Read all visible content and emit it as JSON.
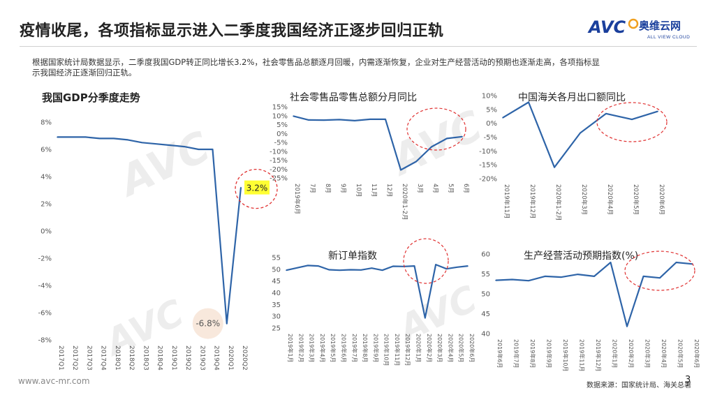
{
  "header": {
    "title": "疫情收尾，各项指标显示进入二季度我国经济正逐步回归正轨",
    "logo_text": "AVC",
    "logo_cn": "奥维云网",
    "logo_en": "ALL VIEW CLOUD"
  },
  "description": "根据国家统计局数据显示，二季度我国GDP转正同比增长3.2%，社会零售品总额逐月回暖，内需逐渐恢复，企业对生产经营活动的预期也逐渐走高，各项指标显示我国经济正逐渐回归正轨。",
  "watermark": {
    "brand": "AVC",
    "cn": "奥维云网",
    "en": "ALL VIEW CLOUD"
  },
  "footer": {
    "website": "www.avc-mr.com",
    "source": "数据来源：国家统计局、海关总署",
    "page": "3"
  },
  "colors": {
    "line": "#2e64a8",
    "highlight": "#ffff33",
    "circle": "#e03030",
    "negative_bg": "#f7e6d8"
  },
  "chart_data": [
    {
      "id": "gdp",
      "type": "line",
      "title": "我国GDP分季度走势",
      "categories": [
        "2017Q1",
        "2017Q2",
        "2017Q3",
        "2017Q4",
        "2018Q1",
        "2018Q2",
        "2018Q3",
        "2018Q4",
        "2019Q1",
        "2019Q2",
        "2019Q3",
        "2019Q4",
        "2020Q1",
        "2020Q2"
      ],
      "values": [
        6.9,
        6.9,
        6.9,
        6.8,
        6.8,
        6.7,
        6.5,
        6.4,
        6.3,
        6.2,
        6.0,
        6.0,
        -6.8,
        3.2
      ],
      "ylim": [
        -8,
        8
      ],
      "yticks": [
        "8%",
        "6%",
        "4%",
        "2%",
        "0%",
        "-2%",
        "-4%",
        "-6%",
        "-8%"
      ],
      "labels": {
        "positive": "3.2%",
        "negative": "-6.8%"
      }
    },
    {
      "id": "retail",
      "type": "line",
      "title": "社会零售品零售总额分月同比",
      "categories": [
        "2019年6月",
        "7月",
        "8月",
        "9月",
        "10月",
        "11月",
        "12月",
        "2020年1-2月",
        "3月",
        "4月",
        "5月",
        "6月"
      ],
      "values": [
        9.8,
        7.6,
        7.5,
        7.8,
        7.2,
        8.0,
        8.0,
        -20.5,
        -15.8,
        -7.5,
        -2.8,
        -1.8
      ],
      "ylim": [
        -25,
        15
      ],
      "yticks": [
        "15%",
        "10%",
        "5%",
        "0%",
        "-5%",
        "-10%",
        "-15%",
        "-20%",
        "-25%"
      ]
    },
    {
      "id": "export",
      "type": "line",
      "title": "中国海关各月出口额同比",
      "categories": [
        "2019年11月",
        "2019年12月",
        "2020年1-2月",
        "2020年3月",
        "2020年4月",
        "2020年5月",
        "2020年6月"
      ],
      "values": [
        2.0,
        7.6,
        -15.9,
        -3.5,
        3.5,
        1.4,
        4.3
      ],
      "ylim": [
        -20,
        10
      ],
      "yticks": [
        "10%",
        "5%",
        "0%",
        "-5%",
        "-10%",
        "-15%",
        "-20%"
      ],
      "xticks": [
        "2019年11月",
        "2019年12月",
        "2020年1-2月",
        "2020年3月",
        "2020年4月",
        "2020年5月",
        "2020年6月"
      ]
    },
    {
      "id": "neworders",
      "type": "line",
      "title": "新订单指数",
      "categories": [
        "2019年1月",
        "2019年2月",
        "2019年3月",
        "2019年4月",
        "2019年5月",
        "2019年6月",
        "2019年7月",
        "2019年8月",
        "2019年9月",
        "2019年10月",
        "2019年11月",
        "2019年12月",
        "2020年1月",
        "2020年2月",
        "2020年3月",
        "2020年4月",
        "2020年5月",
        "2020年6月"
      ],
      "values": [
        49.6,
        50.6,
        51.6,
        51.4,
        49.8,
        49.6,
        49.8,
        49.7,
        50.5,
        49.6,
        51.3,
        51.2,
        51.4,
        29.3,
        52.0,
        50.2,
        50.9,
        51.4
      ],
      "ylim": [
        25,
        55
      ],
      "yticks": [
        "55",
        "50",
        "45",
        "40",
        "35",
        "30",
        "25"
      ]
    },
    {
      "id": "expectation",
      "type": "line",
      "title": "生产经营活动预期指数(%)",
      "categories": [
        "2019年6月",
        "2019年7月",
        "2019年8月",
        "2019年9月",
        "2019年10月",
        "2019年11月",
        "2019年12月",
        "2020年1月",
        "2020年2月",
        "2020年3月",
        "2020年4月",
        "2020年5月",
        "2020年6月"
      ],
      "values": [
        53.4,
        53.6,
        53.3,
        54.4,
        54.2,
        54.9,
        54.4,
        57.9,
        41.8,
        54.4,
        54.0,
        57.9,
        57.5
      ],
      "ylim": [
        40,
        60
      ],
      "yticks": [
        "60",
        "55",
        "50",
        "45",
        "40"
      ]
    }
  ]
}
